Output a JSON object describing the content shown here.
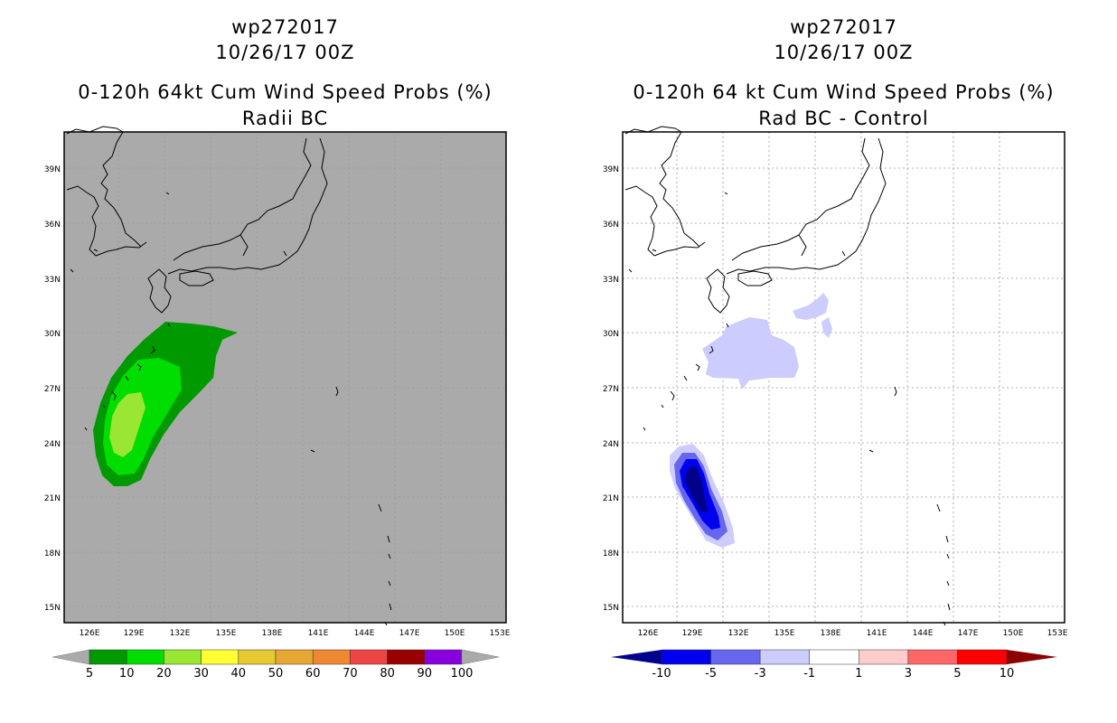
{
  "left_panel": {
    "title_line1": "wp272017",
    "title_line2": "10/26/17 00Z",
    "title_line3": "0-120h 64kt Cum Wind Speed Probs (%)",
    "title_line4": "Radii BC",
    "background_color": "#aaaaaa",
    "colorbar": {
      "labels": [
        "5",
        "10",
        "20",
        "30",
        "40",
        "50",
        "60",
        "70",
        "80",
        "90",
        "100"
      ],
      "colors": [
        "#009900",
        "#00dd00",
        "#99e633",
        "#ffff33",
        "#e6c833",
        "#e6a833",
        "#ee8833",
        "#ee4444",
        "#990000",
        "#8800dd"
      ]
    }
  },
  "right_panel": {
    "title_line1": "wp272017",
    "title_line2": "10/26/17 00Z",
    "title_line3": "0-120h 64 kt Cum Wind Speed Probs (%)",
    "title_line4": "Rad BC - Control",
    "background_color": "#ffffff",
    "colorbar": {
      "labels": [
        "-10",
        "-5",
        "-3",
        "-1",
        "1",
        "3",
        "5",
        "10"
      ],
      "colors": [
        "#00008b",
        "#0000ee",
        "#6666ee",
        "#ccccff",
        "#ffffff",
        "#ffcccc",
        "#ff6666",
        "#ff0000",
        "#8b0000"
      ]
    }
  },
  "map": {
    "lon_labels": [
      "126E",
      "129E",
      "132E",
      "135E",
      "138E",
      "141E",
      "144E",
      "147E",
      "150E",
      "153E"
    ],
    "lat_labels": [
      "39N",
      "36N",
      "33N",
      "30N",
      "27N",
      "24N",
      "21N",
      "18N",
      "15N"
    ]
  }
}
